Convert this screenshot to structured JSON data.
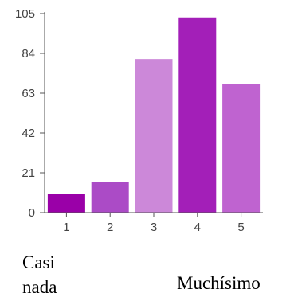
{
  "chart_data": {
    "type": "bar",
    "categories": [
      "1",
      "2",
      "3",
      "4",
      "5"
    ],
    "values": [
      10,
      16,
      81,
      103,
      68
    ],
    "colors": [
      "#9a00a8",
      "#ab4bc6",
      "#cc88d9",
      "#a31fb8",
      "#bf63d0"
    ],
    "ylim": [
      0,
      105
    ],
    "yticks": [
      0,
      21,
      42,
      63,
      84,
      105
    ],
    "grid": false,
    "title": "",
    "xlabel": "",
    "ylabel": ""
  },
  "annotations": {
    "left_end": "Casi nada",
    "right_end": "Muchísimo"
  }
}
